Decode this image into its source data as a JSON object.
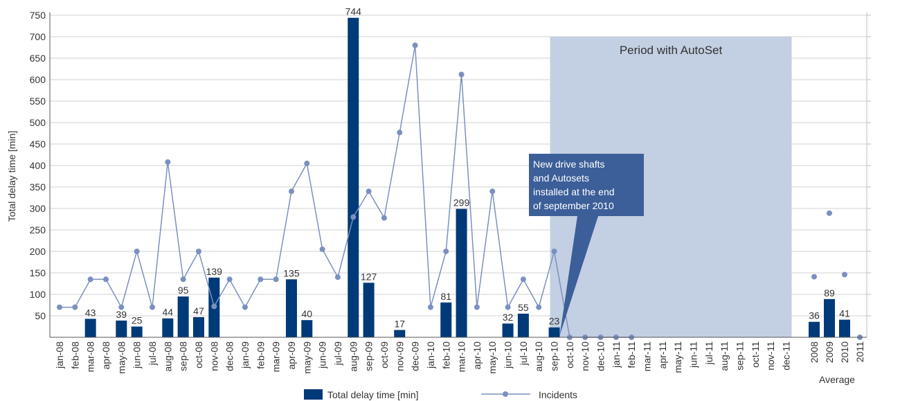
{
  "chart_data": {
    "type": "bar",
    "ylabel": "Total delay time [min]",
    "ylim": [
      0,
      750
    ],
    "yticks": [
      50,
      100,
      150,
      200,
      250,
      300,
      350,
      400,
      450,
      500,
      550,
      600,
      650,
      700,
      750
    ],
    "grid": true,
    "legend_position": "bottom-center",
    "categories": [
      "jan-08",
      "feb-08",
      "mar-08",
      "apr-08",
      "may-08",
      "jun-08",
      "jul-08",
      "aug-08",
      "sep-08",
      "oct-08",
      "nov-08",
      "dec-08",
      "jan-09",
      "feb-09",
      "mar-09",
      "apr-09",
      "may-09",
      "jun-09",
      "jul-09",
      "aug-09",
      "sep-09",
      "oct-09",
      "nov-09",
      "dec-09",
      "jan-10",
      "feb-10",
      "mar-10",
      "apr-10",
      "may-10",
      "jun-10",
      "jul-10",
      "aug-10",
      "sep-10",
      "oct-10",
      "nov-10",
      "dec-10",
      "jan-11",
      "feb-11",
      "mar-11",
      "apr-11",
      "may-11",
      "jun-11",
      "jul-11",
      "aug-11",
      "sep-11",
      "oct-11",
      "nov-11",
      "dec-11"
    ],
    "average_categories": [
      "2008",
      "2009",
      "2010",
      "2011"
    ],
    "average_group_label": "Average",
    "series": [
      {
        "name": "Total delay time [min]",
        "kind": "bar",
        "color": "#003a78",
        "values": [
          null,
          null,
          43,
          null,
          39,
          25,
          null,
          44,
          95,
          47,
          139,
          null,
          null,
          null,
          null,
          135,
          40,
          null,
          null,
          744,
          127,
          null,
          17,
          null,
          null,
          81,
          299,
          null,
          null,
          32,
          55,
          null,
          23,
          null,
          null,
          null,
          null,
          null,
          null,
          null,
          null,
          null,
          null,
          null,
          null,
          null,
          null,
          null
        ],
        "average_values": [
          36,
          89,
          41,
          null
        ]
      },
      {
        "name": "Incidents",
        "kind": "line",
        "color": "#7b90c0",
        "values": [
          70,
          70,
          135,
          135,
          70,
          200,
          70,
          408,
          135,
          200,
          72,
          135,
          70,
          135,
          135,
          340,
          405,
          205,
          140,
          280,
          340,
          278,
          477,
          680,
          70,
          200,
          612,
          70,
          340,
          70,
          135,
          70,
          200,
          0,
          0,
          0,
          0,
          0,
          null,
          null,
          null,
          null,
          null,
          null,
          null,
          null,
          null,
          null
        ],
        "average_values": [
          141,
          289,
          146,
          0
        ]
      }
    ],
    "shaded_region": {
      "from": "sep-10",
      "to": "dec-11",
      "label": "Period with AutoSet",
      "color": "#c3cfe2"
    },
    "annotation": {
      "lines": [
        "New drive shafts",
        "and Autosets",
        "installed at the end",
        "of september 2010"
      ],
      "points_to": "sep-10",
      "color": "#3c5f99"
    }
  }
}
